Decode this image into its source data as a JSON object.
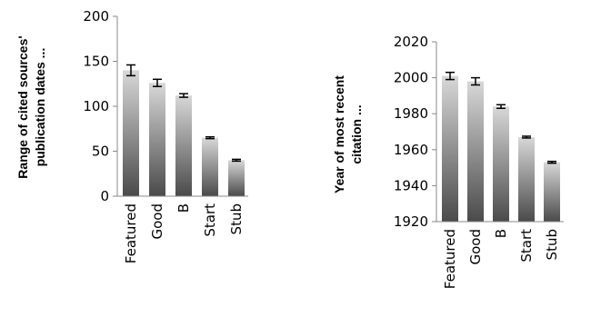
{
  "chart_data": [
    {
      "type": "bar",
      "title": "",
      "xlabel": "",
      "ylabel_lines": [
        "Range of cited sources'",
        "publication dates ..."
      ],
      "categories": [
        "Featured",
        "Good",
        "B",
        "Start",
        "Stub"
      ],
      "values": [
        140,
        126,
        112,
        65,
        40
      ],
      "error": [
        6,
        4,
        2,
        1,
        1
      ],
      "ylim": [
        0,
        200
      ],
      "yticks": [
        0,
        50,
        100,
        150,
        200
      ],
      "grid": false,
      "legend": "none"
    },
    {
      "type": "bar",
      "title": "",
      "xlabel": "",
      "ylabel_lines": [
        "Year of most recent",
        "citation ..."
      ],
      "categories": [
        "Featured",
        "Good",
        "B",
        "Start",
        "Stub"
      ],
      "values": [
        2001,
        1998,
        1984,
        1967,
        1953
      ],
      "error": [
        2,
        2,
        1,
        0.5,
        0.5
      ],
      "ylim": [
        1920,
        2020
      ],
      "yticks": [
        1920,
        1940,
        1960,
        1980,
        2000,
        2020
      ],
      "grid": false,
      "legend": "none"
    }
  ],
  "colors": {
    "bar_top": "#d8d8d8",
    "bar_bottom": "#4a4a4a",
    "axis": "#888888"
  }
}
